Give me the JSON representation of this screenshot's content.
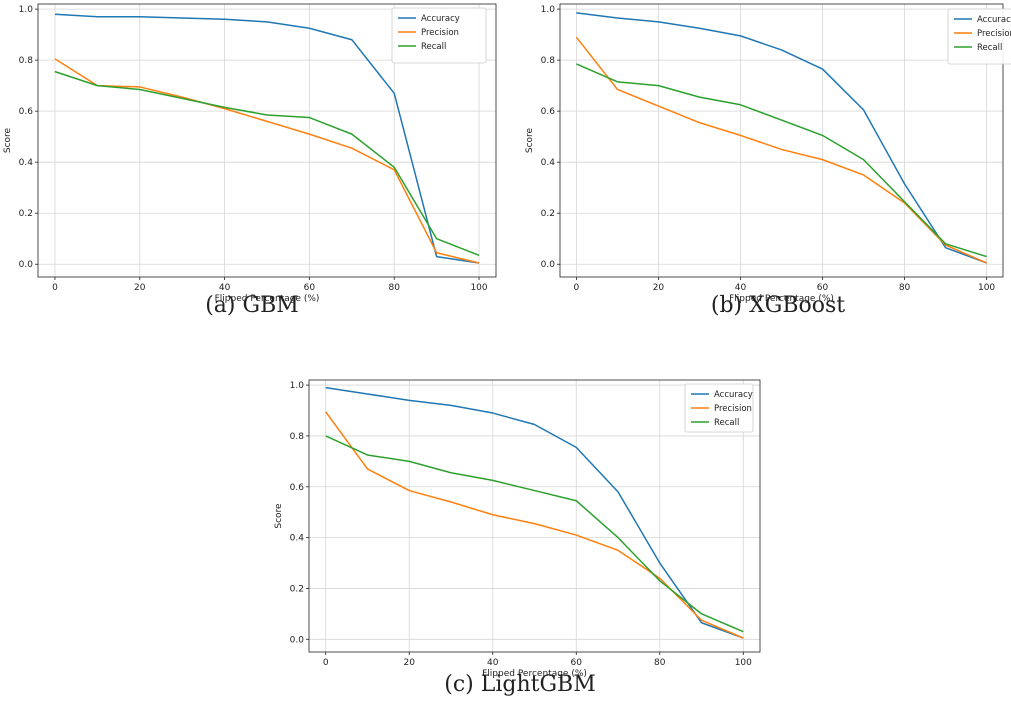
{
  "colors": {
    "accuracy": "#1f77b4",
    "precision": "#ff7f0e",
    "recall": "#2ca02c"
  },
  "captions": {
    "a": "(a) GBM",
    "b": "(b) XGBoost",
    "c": "(c) LightGBM"
  },
  "chart_data": [
    {
      "type": "line",
      "xlabel": "Flipped Percentage (%)",
      "ylabel": "Score",
      "xlim": [
        -4,
        104
      ],
      "ylim": [
        -0.05,
        1.02
      ],
      "xticks": [
        0,
        20,
        40,
        60,
        80,
        100
      ],
      "yticks": [
        0.0,
        0.2,
        0.4,
        0.6,
        0.8,
        1.0
      ],
      "grid": true,
      "legend_position": "top-right",
      "x": [
        0,
        10,
        20,
        30,
        40,
        50,
        60,
        70,
        80,
        90,
        100
      ],
      "series": [
        {
          "name": "Accuracy",
          "color": "#1f77b4",
          "values": [
            0.98,
            0.97,
            0.97,
            0.965,
            0.96,
            0.95,
            0.925,
            0.88,
            0.67,
            0.03,
            0.005
          ]
        },
        {
          "name": "Precision",
          "color": "#ff7f0e",
          "values": [
            0.805,
            0.7,
            0.695,
            0.655,
            0.61,
            0.56,
            0.51,
            0.455,
            0.37,
            0.045,
            0.005
          ]
        },
        {
          "name": "Recall",
          "color": "#2ca02c",
          "values": [
            0.755,
            0.7,
            0.685,
            0.65,
            0.615,
            0.585,
            0.575,
            0.51,
            0.38,
            0.1,
            0.035
          ]
        }
      ]
    },
    {
      "type": "line",
      "xlabel": "Flipped Percentage (%)",
      "ylabel": "Score",
      "xlim": [
        -4,
        104
      ],
      "ylim": [
        -0.05,
        1.02
      ],
      "xticks": [
        0,
        20,
        40,
        60,
        80,
        100
      ],
      "yticks": [
        0.0,
        0.2,
        0.4,
        0.6,
        0.8,
        1.0
      ],
      "grid": true,
      "legend_position": "top-right",
      "x": [
        0,
        10,
        20,
        30,
        40,
        50,
        60,
        70,
        80,
        90,
        100
      ],
      "series": [
        {
          "name": "Accuracy",
          "color": "#1f77b4",
          "values": [
            0.985,
            0.965,
            0.95,
            0.925,
            0.895,
            0.84,
            0.765,
            0.605,
            0.315,
            0.065,
            0.005
          ]
        },
        {
          "name": "Precision",
          "color": "#ff7f0e",
          "values": [
            0.89,
            0.685,
            0.62,
            0.555,
            0.505,
            0.45,
            0.41,
            0.35,
            0.24,
            0.075,
            0.005
          ]
        },
        {
          "name": "Recall",
          "color": "#2ca02c",
          "values": [
            0.785,
            0.715,
            0.7,
            0.655,
            0.625,
            0.565,
            0.505,
            0.41,
            0.245,
            0.08,
            0.03
          ]
        }
      ]
    },
    {
      "type": "line",
      "xlabel": "Flipped Percentage (%)",
      "ylabel": "Score",
      "xlim": [
        -4,
        104
      ],
      "ylim": [
        -0.05,
        1.02
      ],
      "xticks": [
        0,
        20,
        40,
        60,
        80,
        100
      ],
      "yticks": [
        0.0,
        0.2,
        0.4,
        0.6,
        0.8,
        1.0
      ],
      "grid": true,
      "legend_position": "top-right",
      "x": [
        0,
        10,
        20,
        30,
        40,
        50,
        60,
        70,
        80,
        90,
        100
      ],
      "series": [
        {
          "name": "Accuracy",
          "color": "#1f77b4",
          "values": [
            0.99,
            0.965,
            0.94,
            0.92,
            0.89,
            0.845,
            0.755,
            0.58,
            0.3,
            0.065,
            0.005
          ]
        },
        {
          "name": "Precision",
          "color": "#ff7f0e",
          "values": [
            0.895,
            0.67,
            0.585,
            0.54,
            0.49,
            0.455,
            0.41,
            0.35,
            0.24,
            0.075,
            0.005
          ]
        },
        {
          "name": "Recall",
          "color": "#2ca02c",
          "values": [
            0.8,
            0.725,
            0.7,
            0.655,
            0.625,
            0.585,
            0.545,
            0.4,
            0.23,
            0.1,
            0.03
          ]
        }
      ]
    }
  ]
}
